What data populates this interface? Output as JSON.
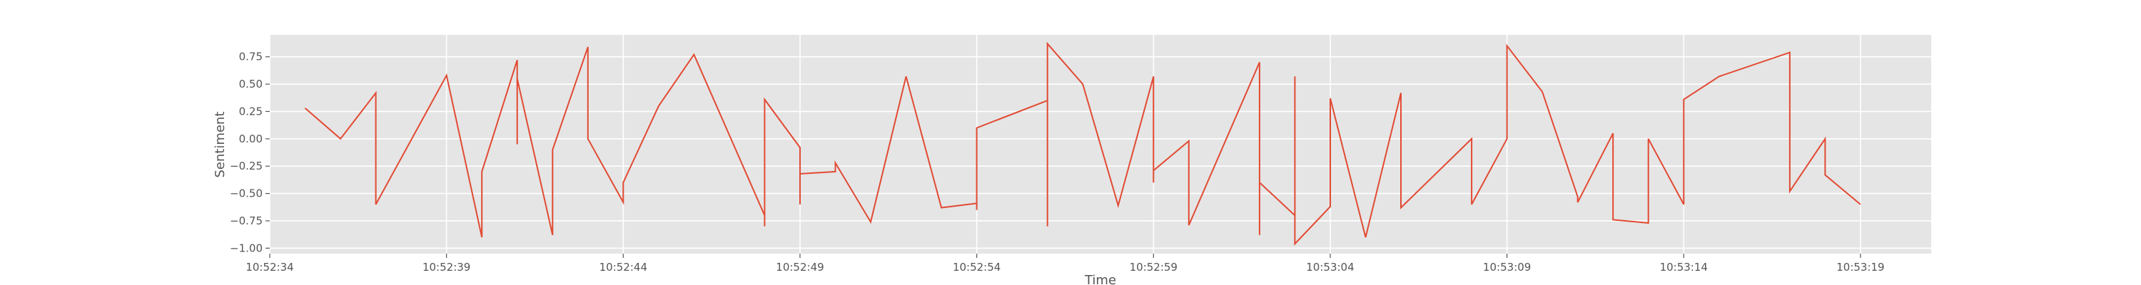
{
  "chart_data": {
    "type": "line",
    "title": "",
    "xlabel": "Time",
    "ylabel": "Sentiment",
    "x_unit": "time (HH:MM:SS)",
    "xlim": [
      "10:52:34.0",
      "10:53:21.0"
    ],
    "ylim": [
      -1.05,
      0.95
    ],
    "x_ticks": [
      "10:52:34",
      "10:52:39",
      "10:52:44",
      "10:52:49",
      "10:52:54",
      "10:52:59",
      "10:53:04",
      "10:53:09",
      "10:53:14",
      "10:53:19"
    ],
    "y_ticks": [
      0.75,
      0.5,
      0.25,
      0.0,
      -0.25,
      -0.5,
      -0.75,
      -1.0
    ],
    "y_tick_labels": [
      "0.75",
      "0.50",
      "0.25",
      "0.00",
      "−0.25",
      "−0.50",
      "−0.75",
      "−1.00"
    ],
    "grid": true,
    "legend": "none",
    "style": {
      "background": "#e5e5e5",
      "grid_color": "#ffffff",
      "line_color": "#e24a33"
    },
    "series": [
      {
        "x": [
          "10:52:35.0",
          "10:52:36.0",
          "10:52:37.0",
          "10:52:37.0",
          "10:52:39.0",
          "10:52:40.0",
          "10:52:40.0",
          "10:52:41.0",
          "10:52:41.0",
          "10:52:41.0",
          "10:52:42.0",
          "10:52:42.0",
          "10:52:43.0",
          "10:52:43.0",
          "10:52:44.0",
          "10:52:44.0",
          "10:52:45.0",
          "10:52:46.0",
          "10:52:48.0",
          "10:52:48.0",
          "10:52:48.0",
          "10:52:49.0",
          "10:52:49.0",
          "10:52:49.0",
          "10:52:50.0",
          "10:52:50.0",
          "10:52:50.0",
          "10:52:51.0",
          "10:52:52.0",
          "10:52:53.0",
          "10:52:54.0",
          "10:52:54.0",
          "10:52:54.0",
          "10:52:56.0",
          "10:52:56.0",
          "10:52:56.0",
          "10:52:57.0",
          "10:52:58.0",
          "10:52:59.0",
          "10:52:59.0",
          "10:52:59.0",
          "10:53:00.0",
          "10:53:00.0",
          "10:53:02.0",
          "10:53:02.0",
          "10:53:02.0",
          "10:53:03.0",
          "10:53:03.0",
          "10:53:03.0",
          "10:53:04.0",
          "10:53:04.0",
          "10:53:05.0",
          "10:53:06.0",
          "10:53:06.0",
          "10:53:08.0",
          "10:53:08.0",
          "10:53:09.0",
          "10:53:09.0",
          "10:53:10.0",
          "10:53:11.0",
          "10:53:11.0",
          "10:53:12.0",
          "10:53:12.0",
          "10:53:13.0",
          "10:53:13.0",
          "10:53:14.0",
          "10:53:14.0",
          "10:53:15.0",
          "10:53:17.0",
          "10:53:17.0",
          "10:53:18.0",
          "10:53:18.0",
          "10:53:19.0"
        ],
        "y": [
          0.28,
          0.0,
          0.42,
          -0.6,
          0.58,
          -0.9,
          -0.3,
          0.72,
          -0.05,
          0.55,
          -0.88,
          -0.1,
          0.84,
          0.0,
          -0.58,
          -0.4,
          0.3,
          0.77,
          -0.7,
          -0.8,
          0.36,
          -0.08,
          -0.6,
          -0.32,
          -0.3,
          -0.25,
          -0.22,
          -0.76,
          0.57,
          -0.63,
          -0.59,
          -0.65,
          0.1,
          0.35,
          -0.8,
          0.87,
          0.5,
          -0.61,
          0.57,
          -0.4,
          -0.29,
          -0.02,
          -0.79,
          0.7,
          -0.88,
          -0.4,
          -0.7,
          0.57,
          -0.96,
          -0.62,
          0.37,
          -0.9,
          0.42,
          -0.63,
          0.0,
          -0.6,
          0.0,
          0.85,
          0.43,
          -0.53,
          -0.58,
          0.05,
          -0.74,
          -0.77,
          0.0,
          -0.6,
          0.36,
          0.57,
          0.79,
          -0.48,
          0.0,
          -0.33,
          -0.6
        ]
      }
    ]
  }
}
